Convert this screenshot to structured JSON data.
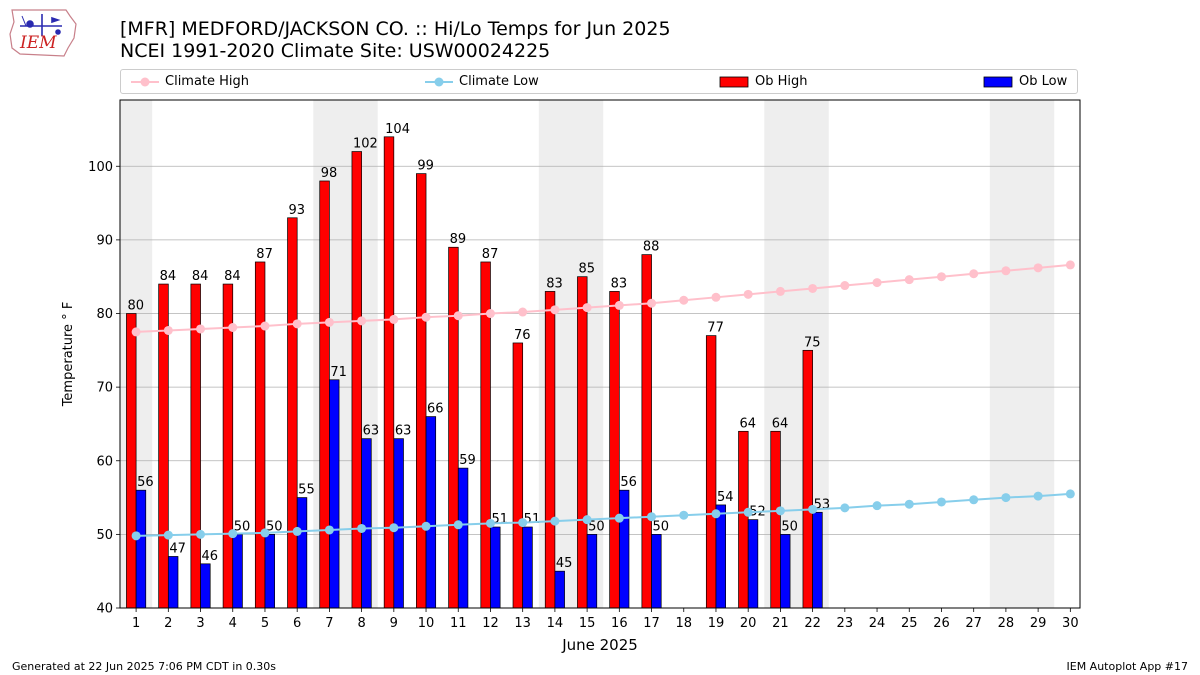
{
  "header": {
    "title_line1": "[MFR] MEDFORD/JACKSON CO. :: Hi/Lo Temps for Jun 2025",
    "title_line2": "NCEI 1991-2020 Climate Site: USW00024225",
    "logo_text": "IEM"
  },
  "footer": {
    "left": "Generated at 22 Jun 2025 7:06 PM CDT in 0.30s",
    "right": "IEM Autoplot App #17"
  },
  "colors": {
    "ob_high": "#ff0000",
    "ob_low": "#0000ff",
    "climate_high": "#ffc0cb",
    "climate_low": "#87ceeb",
    "weekend_shade": "#eeeeee",
    "grid": "#b0b0b0"
  },
  "chart_data": {
    "type": "bar",
    "xlabel": "June 2025",
    "ylabel": "Temperature ° F",
    "ylim": [
      40,
      109
    ],
    "yticks": [
      40,
      50,
      60,
      70,
      80,
      90,
      100
    ],
    "grid": "horizontal",
    "legend_placement": "top",
    "categories": [
      "1",
      "2",
      "3",
      "4",
      "5",
      "6",
      "7",
      "8",
      "9",
      "10",
      "11",
      "12",
      "13",
      "14",
      "15",
      "16",
      "17",
      "18",
      "19",
      "20",
      "21",
      "22",
      "23",
      "24",
      "25",
      "26",
      "27",
      "28",
      "29",
      "30"
    ],
    "shaded_days": [
      "1",
      "7",
      "8",
      "14",
      "15",
      "21",
      "22",
      "28",
      "29"
    ],
    "series": [
      {
        "name": "Ob High",
        "kind": "bar",
        "values": [
          80,
          84,
          84,
          84,
          87,
          93,
          98,
          102,
          104,
          99,
          89,
          87,
          76,
          83,
          85,
          83,
          88,
          null,
          77,
          64,
          64,
          75,
          null,
          null,
          null,
          null,
          null,
          null,
          null,
          null
        ]
      },
      {
        "name": "Ob Low",
        "kind": "bar",
        "values": [
          56,
          47,
          46,
          50,
          50,
          55,
          71,
          63,
          63,
          66,
          59,
          51,
          51,
          45,
          50,
          56,
          50,
          null,
          54,
          52,
          50,
          53,
          null,
          null,
          null,
          null,
          null,
          null,
          null,
          null
        ]
      },
      {
        "name": "Climate High",
        "kind": "line",
        "values": [
          77.5,
          77.7,
          77.9,
          78.1,
          78.3,
          78.6,
          78.8,
          79.0,
          79.2,
          79.5,
          79.7,
          80.0,
          80.2,
          80.5,
          80.8,
          81.1,
          81.4,
          81.8,
          82.2,
          82.6,
          83.0,
          83.4,
          83.8,
          84.2,
          84.6,
          85.0,
          85.4,
          85.8,
          86.2,
          86.6
        ]
      },
      {
        "name": "Climate Low",
        "kind": "line",
        "values": [
          49.8,
          49.9,
          50.0,
          50.1,
          50.2,
          50.4,
          50.6,
          50.8,
          50.9,
          51.1,
          51.3,
          51.5,
          51.6,
          51.8,
          52.0,
          52.2,
          52.4,
          52.6,
          52.8,
          53.0,
          53.2,
          53.4,
          53.6,
          53.9,
          54.1,
          54.4,
          54.7,
          55.0,
          55.2,
          55.5
        ]
      }
    ]
  }
}
